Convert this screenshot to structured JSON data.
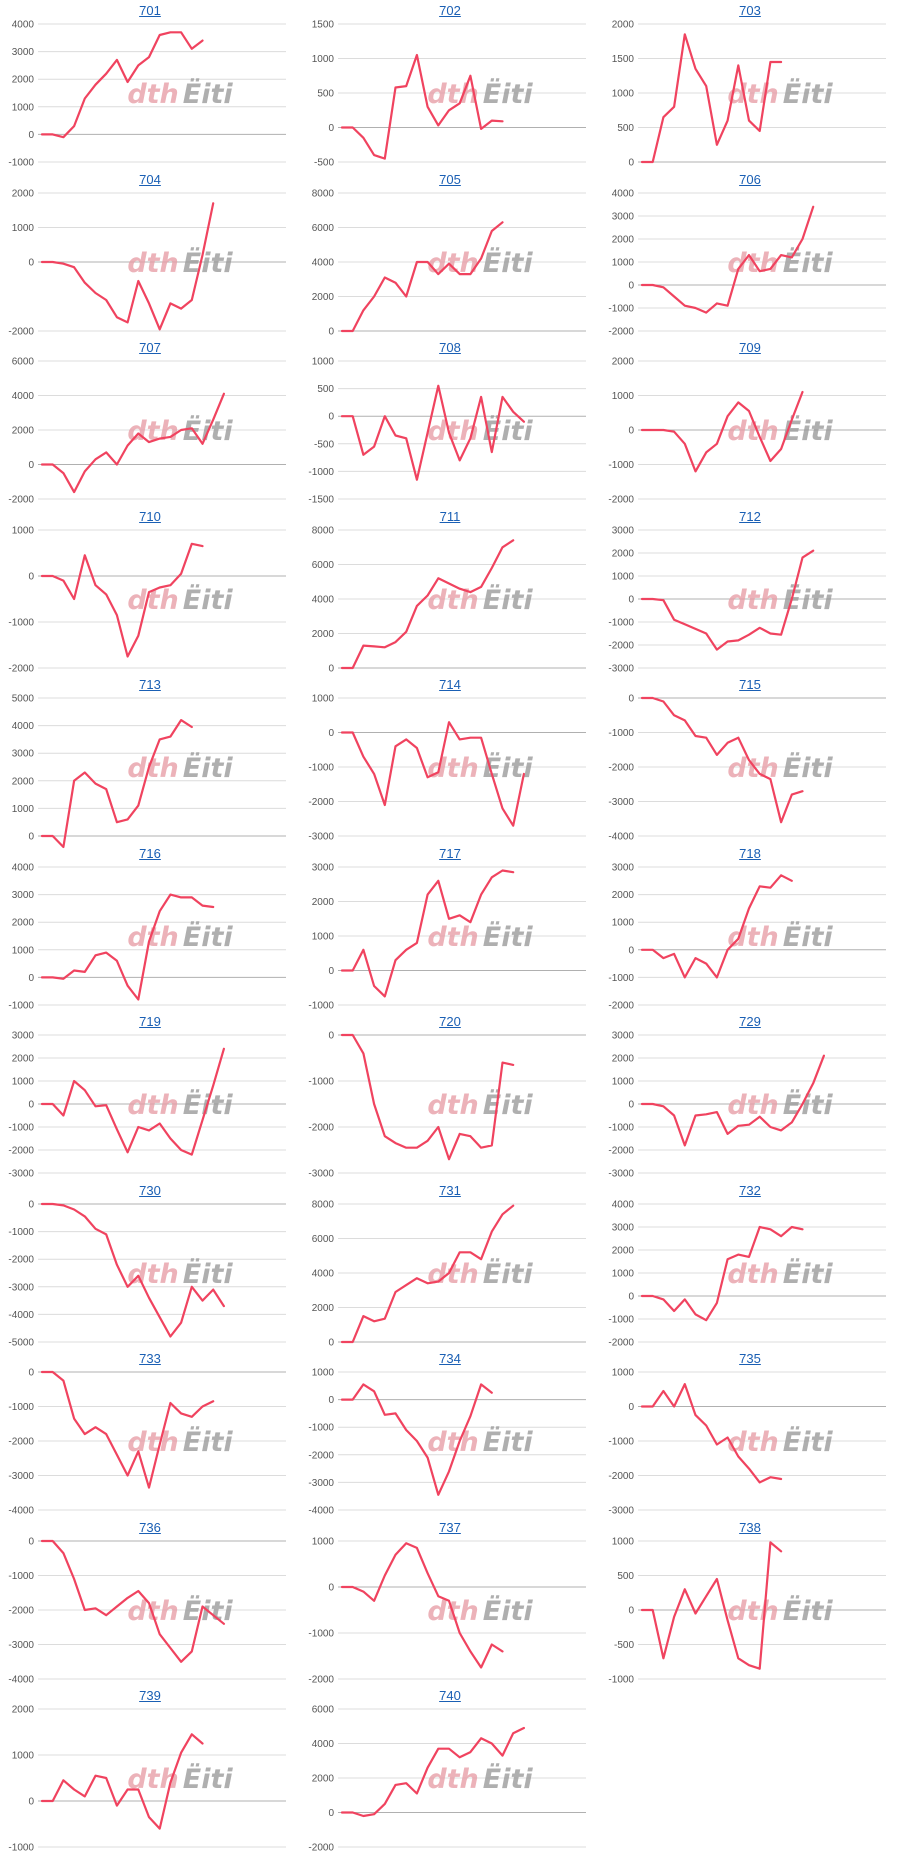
{
  "colors": {
    "line": "#f0435f",
    "grid": "#dcdcdc",
    "axis": "#b0b0b0",
    "link": "#1a5fb4",
    "watermark_red": "#e8a0a8",
    "watermark_gray": "#9c9c9c"
  },
  "watermark": {
    "part1": "dth",
    "part2": "Ёiti"
  },
  "chart_data": [
    {
      "type": "line",
      "title": "701",
      "yticks": [
        -1000,
        0,
        1000,
        2000,
        3000,
        4000
      ],
      "values": [
        0,
        0,
        -100,
        300,
        1300,
        1800,
        2200,
        2700,
        1900,
        2500,
        2800,
        3600,
        3700,
        3700,
        3100,
        3400
      ]
    },
    {
      "type": "line",
      "title": "702",
      "yticks": [
        -500,
        0,
        500,
        1000,
        1500
      ],
      "values": [
        0,
        0,
        -150,
        -400,
        -450,
        580,
        600,
        1050,
        300,
        30,
        250,
        350,
        750,
        -20,
        100,
        90
      ]
    },
    {
      "type": "line",
      "title": "703",
      "yticks": [
        0,
        500,
        1000,
        1500,
        2000
      ],
      "values": [
        0,
        0,
        650,
        800,
        1850,
        1350,
        1100,
        250,
        600,
        1400,
        600,
        450,
        1450,
        1450
      ]
    },
    {
      "type": "line",
      "title": "704",
      "yticks": [
        -2000,
        0,
        1000,
        2000
      ],
      "values": [
        0,
        0,
        -50,
        -150,
        -600,
        -900,
        -1100,
        -1600,
        -1750,
        -550,
        -1200,
        -1950,
        -1200,
        -1350,
        -1100,
        200,
        1700
      ]
    },
    {
      "type": "line",
      "title": "705",
      "yticks": [
        0,
        2000,
        4000,
        6000,
        8000
      ],
      "values": [
        0,
        0,
        1200,
        2000,
        3100,
        2800,
        2000,
        4000,
        4000,
        3300,
        3900,
        3300,
        3300,
        4200,
        5800,
        6300
      ]
    },
    {
      "type": "line",
      "title": "706",
      "yticks": [
        -2000,
        -1000,
        0,
        1000,
        2000,
        3000,
        4000
      ],
      "values": [
        0,
        0,
        -100,
        -500,
        -900,
        -1000,
        -1200,
        -800,
        -900,
        700,
        1300,
        600,
        700,
        1300,
        1200,
        2000,
        3400
      ]
    },
    {
      "type": "line",
      "title": "707",
      "yticks": [
        -2000,
        0,
        2000,
        4000,
        6000
      ],
      "values": [
        0,
        0,
        -500,
        -1600,
        -400,
        300,
        700,
        0,
        1100,
        1800,
        1300,
        1500,
        1600,
        2000,
        2100,
        1200,
        2600,
        4100
      ]
    },
    {
      "type": "line",
      "title": "708",
      "yticks": [
        -1500,
        -1000,
        -500,
        0,
        500,
        1000
      ],
      "values": [
        0,
        0,
        -700,
        -550,
        0,
        -350,
        -400,
        -1150,
        -300,
        550,
        -300,
        -800,
        -400,
        350,
        -650,
        350,
        80,
        -100
      ]
    },
    {
      "type": "line",
      "title": "709",
      "yticks": [
        -2000,
        -1000,
        0,
        1000,
        2000
      ],
      "values": [
        0,
        0,
        0,
        -50,
        -400,
        -1200,
        -650,
        -400,
        400,
        800,
        550,
        -200,
        -900,
        -550,
        300,
        1100
      ]
    },
    {
      "type": "line",
      "title": "710",
      "yticks": [
        -2000,
        -1000,
        0,
        1000
      ],
      "values": [
        0,
        0,
        -100,
        -500,
        450,
        -200,
        -400,
        -850,
        -1750,
        -1300,
        -350,
        -250,
        -200,
        50,
        700,
        650
      ]
    },
    {
      "type": "line",
      "title": "711",
      "yticks": [
        0,
        2000,
        4000,
        6000,
        8000
      ],
      "values": [
        0,
        0,
        1300,
        1250,
        1200,
        1500,
        2100,
        3600,
        4200,
        5200,
        4900,
        4600,
        4400,
        4700,
        5800,
        7000,
        7400
      ]
    },
    {
      "type": "line",
      "title": "712",
      "yticks": [
        -3000,
        -2000,
        -1000,
        0,
        1000,
        2000,
        3000
      ],
      "values": [
        0,
        0,
        -50,
        -900,
        -1100,
        -1300,
        -1500,
        -2200,
        -1850,
        -1800,
        -1550,
        -1250,
        -1500,
        -1550,
        0,
        1800,
        2100
      ]
    },
    {
      "type": "line",
      "title": "713",
      "yticks": [
        0,
        1000,
        2000,
        3000,
        4000,
        5000
      ],
      "values": [
        0,
        0,
        -400,
        2000,
        2300,
        1900,
        1700,
        500,
        600,
        1100,
        2500,
        3500,
        3600,
        4200,
        3950
      ]
    },
    {
      "type": "line",
      "title": "714",
      "yticks": [
        -3000,
        -2000,
        -1000,
        0,
        1000
      ],
      "values": [
        0,
        0,
        -700,
        -1200,
        -2100,
        -400,
        -200,
        -450,
        -1300,
        -1150,
        300,
        -200,
        -150,
        -150,
        -1200,
        -2200,
        -2700,
        -1200
      ]
    },
    {
      "type": "line",
      "title": "715",
      "yticks": [
        -4000,
        -3000,
        -2000,
        -1000,
        0
      ],
      "values": [
        0,
        0,
        -100,
        -500,
        -650,
        -1100,
        -1150,
        -1650,
        -1300,
        -1150,
        -1800,
        -2200,
        -2350,
        -3600,
        -2800,
        -2700
      ]
    },
    {
      "type": "line",
      "title": "716",
      "yticks": [
        -1000,
        0,
        1000,
        2000,
        3000,
        4000
      ],
      "values": [
        0,
        0,
        -50,
        250,
        200,
        800,
        900,
        600,
        -300,
        -800,
        1300,
        2400,
        3000,
        2900,
        2900,
        2600,
        2550
      ]
    },
    {
      "type": "line",
      "title": "717",
      "yticks": [
        -1000,
        0,
        1000,
        2000,
        3000
      ],
      "values": [
        0,
        0,
        600,
        -450,
        -750,
        300,
        600,
        800,
        2200,
        2600,
        1500,
        1600,
        1400,
        2200,
        2700,
        2900,
        2850
      ]
    },
    {
      "type": "line",
      "title": "718",
      "yticks": [
        -2000,
        -1000,
        0,
        1000,
        2000,
        3000
      ],
      "values": [
        0,
        0,
        -300,
        -150,
        -1000,
        -300,
        -500,
        -1000,
        0,
        400,
        1500,
        2300,
        2250,
        2700,
        2500
      ]
    },
    {
      "type": "line",
      "title": "719",
      "yticks": [
        -3000,
        -2000,
        -1000,
        0,
        1000,
        2000,
        3000
      ],
      "values": [
        0,
        0,
        -500,
        1000,
        600,
        -100,
        -50,
        -1100,
        -2100,
        -1000,
        -1150,
        -850,
        -1500,
        -2000,
        -2200,
        -700,
        800,
        2400
      ]
    },
    {
      "type": "line",
      "title": "720",
      "yticks": [
        -3000,
        -2000,
        -1000,
        0
      ],
      "values": [
        0,
        0,
        -400,
        -1500,
        -2200,
        -2350,
        -2450,
        -2450,
        -2300,
        -2000,
        -2700,
        -2150,
        -2200,
        -2450,
        -2400,
        -600,
        -650
      ]
    },
    {
      "type": "line",
      "title": "729",
      "yticks": [
        -3000,
        -2000,
        -1000,
        0,
        1000,
        2000,
        3000
      ],
      "values": [
        0,
        0,
        -100,
        -500,
        -1800,
        -500,
        -450,
        -350,
        -1300,
        -950,
        -900,
        -550,
        -1000,
        -1150,
        -800,
        0,
        900,
        2100
      ]
    },
    {
      "type": "line",
      "title": "730",
      "yticks": [
        -5000,
        -4000,
        -3000,
        -2000,
        -1000,
        0
      ],
      "values": [
        0,
        0,
        -50,
        -200,
        -450,
        -900,
        -1100,
        -2200,
        -3000,
        -2600,
        -3400,
        -4100,
        -4800,
        -4300,
        -3000,
        -3500,
        -3100,
        -3700
      ]
    },
    {
      "type": "line",
      "title": "731",
      "yticks": [
        0,
        2000,
        4000,
        6000,
        8000
      ],
      "values": [
        0,
        0,
        1500,
        1200,
        1350,
        2900,
        3300,
        3700,
        3400,
        3500,
        4000,
        5200,
        5200,
        4800,
        6400,
        7400,
        7900
      ]
    },
    {
      "type": "line",
      "title": "732",
      "yticks": [
        -2000,
        -1000,
        0,
        1000,
        2000,
        3000,
        4000
      ],
      "values": [
        0,
        0,
        -150,
        -650,
        -150,
        -800,
        -1050,
        -300,
        1600,
        1800,
        1700,
        3000,
        2900,
        2600,
        3000,
        2900
      ]
    },
    {
      "type": "line",
      "title": "733",
      "yticks": [
        -4000,
        -3000,
        -2000,
        -1000,
        0
      ],
      "values": [
        0,
        0,
        -250,
        -1350,
        -1800,
        -1600,
        -1800,
        -2400,
        -3000,
        -2300,
        -3350,
        -2100,
        -900,
        -1200,
        -1300,
        -1000,
        -850
      ]
    },
    {
      "type": "line",
      "title": "734",
      "yticks": [
        -4000,
        -3000,
        -2000,
        -1000,
        0,
        1000
      ],
      "values": [
        0,
        0,
        550,
        300,
        -550,
        -500,
        -1100,
        -1500,
        -2100,
        -3450,
        -2600,
        -1500,
        -600,
        550,
        250
      ]
    },
    {
      "type": "line",
      "title": "735",
      "yticks": [
        -3000,
        -2000,
        -1000,
        0,
        1000
      ],
      "values": [
        0,
        0,
        450,
        0,
        650,
        -250,
        -550,
        -1100,
        -900,
        -1450,
        -1800,
        -2200,
        -2050,
        -2100
      ]
    },
    {
      "type": "line",
      "title": "736",
      "yticks": [
        -4000,
        -3000,
        -2000,
        -1000,
        0
      ],
      "values": [
        0,
        0,
        -350,
        -1100,
        -2000,
        -1950,
        -2150,
        -1900,
        -1650,
        -1450,
        -1800,
        -2700,
        -3100,
        -3500,
        -3200,
        -1900,
        -2150,
        -2400
      ]
    },
    {
      "type": "line",
      "title": "737",
      "yticks": [
        -2000,
        -1000,
        0,
        1000
      ],
      "values": [
        0,
        0,
        -100,
        -300,
        250,
        700,
        950,
        850,
        300,
        -200,
        -300,
        -1000,
        -1400,
        -1750,
        -1250,
        -1400
      ]
    },
    {
      "type": "line",
      "title": "738",
      "yticks": [
        -1000,
        -500,
        0,
        500,
        1000
      ],
      "values": [
        0,
        0,
        -700,
        -100,
        300,
        -50,
        200,
        450,
        -150,
        -700,
        -800,
        -850,
        980,
        850
      ]
    },
    {
      "type": "line",
      "title": "739",
      "yticks": [
        -1000,
        0,
        1000,
        2000
      ],
      "values": [
        0,
        0,
        450,
        250,
        100,
        550,
        500,
        -100,
        250,
        250,
        -350,
        -600,
        400,
        1050,
        1450,
        1250
      ]
    },
    {
      "type": "line",
      "title": "740",
      "yticks": [
        -2000,
        0,
        2000,
        4000,
        6000
      ],
      "values": [
        0,
        0,
        -200,
        -100,
        500,
        1600,
        1700,
        1100,
        2600,
        3700,
        3700,
        3200,
        3500,
        4300,
        4000,
        3300,
        4600,
        4900
      ]
    }
  ]
}
